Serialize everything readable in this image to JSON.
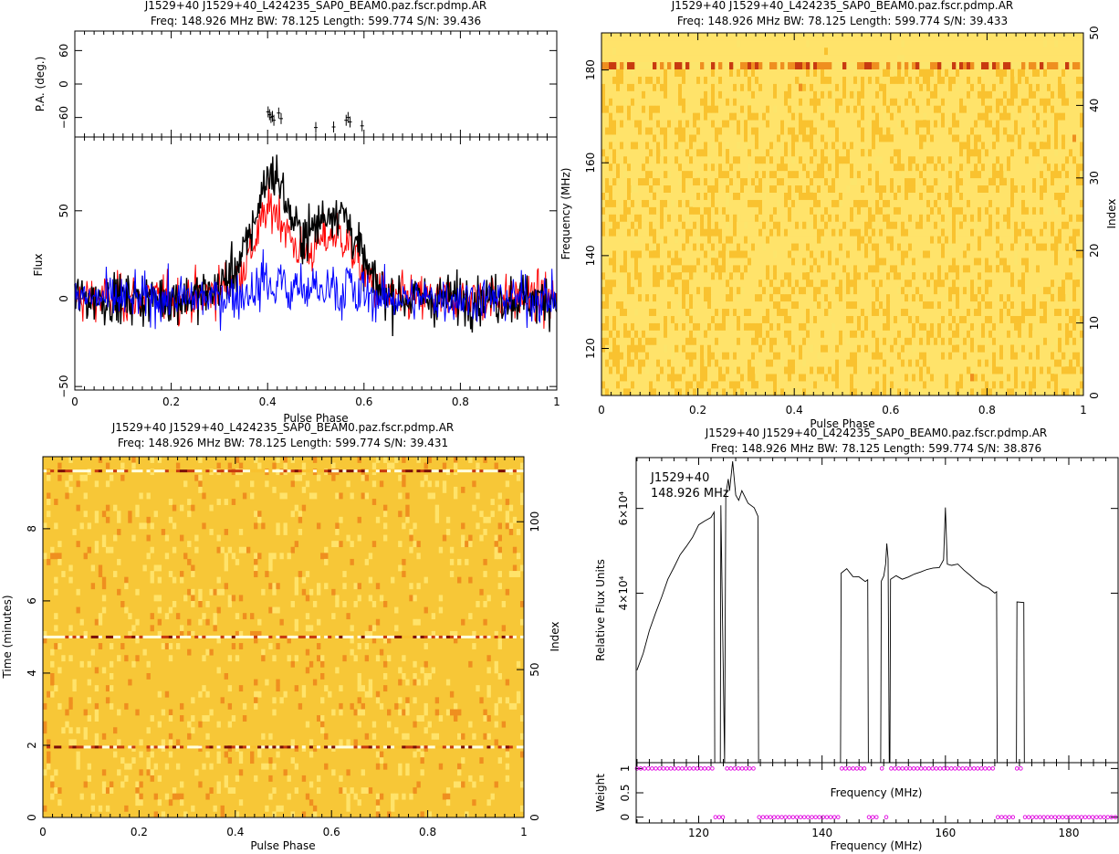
{
  "panels": {
    "profile": {
      "title1": "J1529+40 J1529+40_L424235_SAP0_BEAM0.paz.fscr.pdmp.AR",
      "title2": "Freq: 148.926 MHz BW: 78.125 Length: 599.774 S/N: 39.436"
    },
    "phase_freq": {
      "title1": "J1529+40 J1529+40_L424235_SAP0_BEAM0.paz.fscr.pdmp.AR",
      "title2": "Freq: 148.926 MHz BW: 78.125 Length: 599.774 S/N: 39.433"
    },
    "phase_time": {
      "title1": "J1529+40 J1529+40_L424235_SAP0_BEAM0.paz.fscr.pdmp.AR",
      "title2": "Freq: 148.926 MHz BW: 78.125 Length: 599.774 S/N: 39.431"
    },
    "bandpass": {
      "title1": "J1529+40 J1529+40_L424235_SAP0_BEAM0.paz.fscr.pdmp.AR",
      "title2": "Freq: 148.926 MHz BW: 78.125 Length: 599.774 S/N: 38.876",
      "annotation1": "J1529+40",
      "annotation2": "148.926 MHz"
    }
  },
  "chart_data": [
    {
      "type": "line",
      "panel": "pulse-profile",
      "xlabel": "Pulse Phase",
      "ylabel": "Flux",
      "xlim": [
        0,
        1
      ],
      "ylim": [
        -52,
        92
      ],
      "xticks": [
        "0",
        "0.2",
        "0.4",
        "0.6",
        "0.8",
        "1"
      ],
      "yticks": [
        "−50",
        "0",
        "50"
      ],
      "ytick_values": [
        -50,
        0,
        50
      ],
      "series_colors": [
        "#000000",
        "#ff0000",
        "#0000ff"
      ],
      "peaks": [
        {
          "center": 0.41,
          "width": 0.03,
          "amp": 52
        },
        {
          "center": 0.37,
          "width": 0.05,
          "amp": 20
        },
        {
          "center": 0.55,
          "width": 0.04,
          "amp": 45
        },
        {
          "center": 0.48,
          "width": 0.04,
          "amp": 22
        }
      ],
      "noise_rms": 10,
      "note": "Total intensity (black), linear (red), circular (blue) polarization profiles"
    },
    {
      "type": "scatter",
      "panel": "position-angle",
      "ylabel": "P.A. (deg.)",
      "xlim": [
        0,
        1
      ],
      "ylim": [
        -95,
        95
      ],
      "yticks": [
        "−60",
        "0",
        "60"
      ],
      "ytick_values": [
        -60,
        0,
        60
      ],
      "x": [
        0.401,
        0.404,
        0.407,
        0.41,
        0.413,
        0.423,
        0.428,
        0.5,
        0.537,
        0.563,
        0.567,
        0.571,
        0.596
      ],
      "y": [
        -50,
        -55,
        -60,
        -58,
        -65,
        -52,
        -62,
        -78,
        -77,
        -65,
        -60,
        -68,
        -75
      ]
    },
    {
      "type": "heatmap",
      "panel": "phase-frequency",
      "xlabel": "Pulse Phase",
      "ylabel": "Frequency (MHz)",
      "y2label": "Index",
      "xlim": [
        0,
        1
      ],
      "ylim": [
        109.864,
        187.989
      ],
      "y2lim": [
        0,
        50
      ],
      "xticks": [
        "0",
        "0.2",
        "0.4",
        "0.6",
        "0.8",
        "1"
      ],
      "yticks": [
        "120",
        "140",
        "160",
        "180"
      ],
      "ytick_values": [
        120,
        140,
        160,
        180
      ],
      "y2ticks": [
        "0",
        "10",
        "20",
        "30",
        "40",
        "50"
      ],
      "y2tick_values": [
        0,
        10,
        20,
        30,
        40,
        50
      ],
      "colormap": [
        "#ffffe0",
        "#ffe36a",
        "#f9c22f",
        "#ef8f1f",
        "#c83a10",
        "#7a0e08"
      ],
      "bright_row_index": 45
    },
    {
      "type": "heatmap",
      "panel": "phase-time",
      "xlabel": "Pulse Phase",
      "ylabel": "Time (minutes)",
      "y2label": "Index",
      "xlim": [
        0,
        1
      ],
      "ylim": [
        0,
        9.996
      ],
      "y2lim": [
        0,
        122
      ],
      "xticks": [
        "0",
        "0.2",
        "0.4",
        "0.6",
        "0.8",
        "1"
      ],
      "yticks": [
        "0",
        "2",
        "4",
        "6",
        "8"
      ],
      "ytick_values": [
        0,
        2,
        4,
        6,
        8
      ],
      "y2ticks": [
        "0",
        "50",
        "100"
      ],
      "y2tick_values": [
        0,
        50,
        100
      ],
      "bright_rows_minutes": [
        1.95,
        5.0,
        9.6
      ]
    },
    {
      "type": "line",
      "panel": "bandpass",
      "ylabel": "Relative Flux Units",
      "xlim": [
        109.864,
        187.989
      ],
      "ylim": [
        0,
        72000
      ],
      "yticks": [
        "4×10⁴",
        "6×10⁴"
      ],
      "ytick_values": [
        40000,
        60000
      ],
      "x": [
        110,
        111,
        112,
        113,
        114,
        115,
        116,
        117,
        118,
        119,
        120,
        121,
        122,
        122.5,
        122.6,
        123.5,
        123.6,
        124.2,
        124.4,
        124.8,
        125,
        125.5,
        126,
        126.5,
        127,
        128,
        129,
        129.6,
        129.7,
        143,
        143.1,
        144,
        145,
        146,
        147,
        147.4,
        147.5,
        149.5,
        149.6,
        150,
        150.3,
        150.5,
        150.7,
        150.9,
        151,
        151.1,
        152,
        153,
        154,
        155,
        156,
        157,
        158,
        159,
        159.7,
        160,
        160.3,
        161,
        162,
        163,
        164,
        165,
        166,
        167,
        168,
        168.3,
        168.4,
        171.5,
        171.6,
        172.7,
        172.8
      ],
      "y": [
        22000,
        26000,
        31000,
        35000,
        39000,
        43000,
        46000,
        49000,
        51000,
        53000,
        56000,
        57000,
        58000,
        59000,
        0,
        0,
        61000,
        0,
        63000,
        67000,
        64000,
        71000,
        63000,
        62000,
        64000,
        61000,
        60000,
        58000,
        0,
        0,
        45000,
        46000,
        44000,
        44000,
        43000,
        43000,
        0,
        0,
        43000,
        44000,
        47000,
        52000,
        48000,
        0,
        0,
        43000,
        44000,
        43000,
        44000,
        44500,
        45000,
        45500,
        46000,
        46000,
        48000,
        60000,
        47000,
        46500,
        47000,
        45500,
        44500,
        43000,
        42000,
        41000,
        40000,
        40000,
        0,
        0,
        38000,
        38000,
        0
      ]
    },
    {
      "type": "scatter",
      "panel": "weights",
      "xlabel": "Frequency (MHz)",
      "ylabel": "Weight",
      "xlim": [
        109.864,
        187.989
      ],
      "ylim": [
        -0.12,
        1.12
      ],
      "xticks": [
        "120",
        "140",
        "160",
        "180"
      ],
      "xtick_values": [
        120,
        140,
        160,
        180
      ],
      "yticks": [
        "0",
        "0.5",
        "1"
      ],
      "ytick_values": [
        0,
        0.5,
        1
      ],
      "weight1_ranges": [
        [
          110.0,
          122.5
        ],
        [
          124.6,
          129.4
        ],
        [
          143.2,
          147.3
        ],
        [
          149.7,
          150.2
        ],
        [
          151.2,
          168.2
        ],
        [
          171.6,
          172.6
        ]
      ],
      "weight0_ranges": [
        [
          122.7,
          124.5
        ],
        [
          129.8,
          143.0
        ],
        [
          147.6,
          149.4
        ],
        [
          150.4,
          151.0
        ],
        [
          168.5,
          171.4
        ],
        [
          172.9,
          187.9
        ]
      ],
      "point_color": "#e000e0"
    }
  ]
}
